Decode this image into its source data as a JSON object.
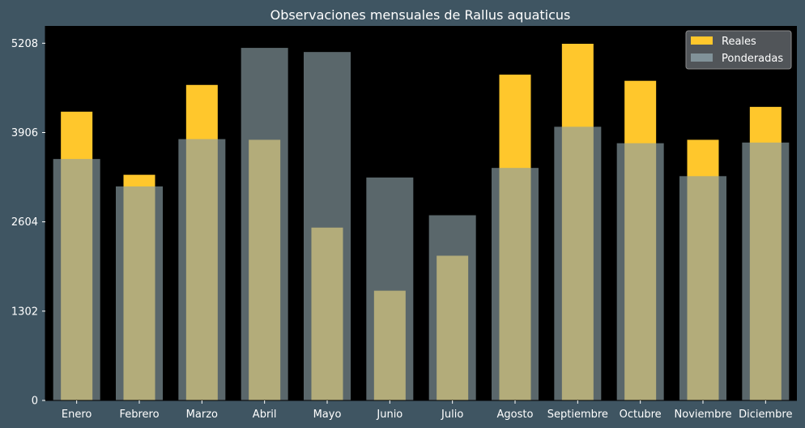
{
  "chart_data": {
    "type": "bar",
    "title": "Observaciones mensuales de Rallus aquaticus",
    "categories": [
      "Enero",
      "Febrero",
      "Marzo",
      "Abril",
      "Mayo",
      "Junio",
      "Julio",
      "Agosto",
      "Septiembre",
      "Octubre",
      "Noviembre",
      "Diciembre"
    ],
    "series": [
      {
        "name": "Reales",
        "color": "#ffc72c",
        "values": [
          4210,
          3290,
          4600,
          3800,
          2520,
          1600,
          2110,
          4750,
          5200,
          4660,
          3800,
          4280
        ]
      },
      {
        "name": "Ponderadas",
        "color": "#8a9ea4",
        "values": [
          3520,
          3120,
          3810,
          5140,
          5080,
          3250,
          2700,
          3390,
          3990,
          3750,
          3270,
          3760
        ]
      }
    ],
    "yticks": [
      0,
      1302,
      2604,
      3906,
      5208
    ],
    "ylim": [
      0,
      5460
    ],
    "xlabel": "",
    "ylabel": "",
    "legend": "top-right",
    "grid": false
  },
  "colors": {
    "background": "#3f5562",
    "plot_background": "#000000"
  }
}
